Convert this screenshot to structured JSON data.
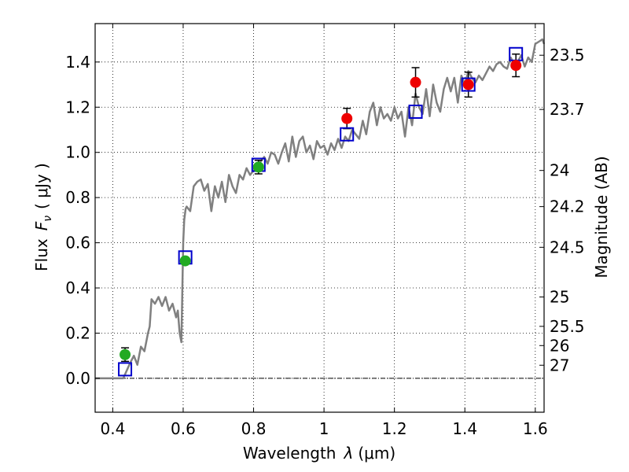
{
  "chart_data": {
    "type": "scatter",
    "xlabel_text": "Wavelength",
    "xlabel_symbol": "λ",
    "xlabel_unit": "(μm)",
    "ylabel_text": "Flux",
    "ylabel_symbol": "F",
    "ylabel_sub": "ν",
    "ylabel_unit": "( μJy )",
    "y2label": "Magnitude (AB)",
    "xlim": [
      0.35,
      1.625
    ],
    "ylim": [
      -0.15,
      1.57
    ],
    "x_ticks": [
      {
        "value": 0.4,
        "label": "0.4"
      },
      {
        "value": 0.6,
        "label": "0.6"
      },
      {
        "value": 0.8,
        "label": "0.8"
      },
      {
        "value": 1.0,
        "label": "1"
      },
      {
        "value": 1.2,
        "label": "1.2"
      },
      {
        "value": 1.4,
        "label": "1.4"
      },
      {
        "value": 1.6,
        "label": "1.6"
      }
    ],
    "y_ticks": [
      {
        "value": 0.0,
        "label": "0.0"
      },
      {
        "value": 0.2,
        "label": "0.2"
      },
      {
        "value": 0.4,
        "label": "0.4"
      },
      {
        "value": 0.6,
        "label": "0.6"
      },
      {
        "value": 0.8,
        "label": "0.8"
      },
      {
        "value": 1.0,
        "label": "1.0"
      },
      {
        "value": 1.2,
        "label": "1.2"
      },
      {
        "value": 1.4,
        "label": "1.4"
      }
    ],
    "mag_ticks": [
      {
        "flux": 1.43,
        "label": "23.5"
      },
      {
        "flux": 1.19,
        "label": "23.7"
      },
      {
        "flux": 0.92,
        "label": "24"
      },
      {
        "flux": 0.76,
        "label": "24.2"
      },
      {
        "flux": 0.58,
        "label": "24.5"
      },
      {
        "flux": 0.36,
        "label": "25"
      },
      {
        "flux": 0.23,
        "label": "25.5"
      },
      {
        "flux": 0.145,
        "label": "26"
      },
      {
        "flux": 0.058,
        "label": "27"
      }
    ],
    "grid": true,
    "zero_line": true,
    "colors": {
      "model": "#808080",
      "green": "#22aa22",
      "red": "#ee0000",
      "box": "#0000cc",
      "grid": "#000000"
    },
    "model_spectrum": {
      "x": [
        0.35,
        0.43,
        0.45,
        0.46,
        0.47,
        0.48,
        0.49,
        0.5,
        0.505,
        0.51,
        0.52,
        0.53,
        0.54,
        0.55,
        0.56,
        0.57,
        0.58,
        0.585,
        0.59,
        0.595,
        0.6,
        0.603,
        0.607,
        0.61,
        0.62,
        0.63,
        0.64,
        0.65,
        0.66,
        0.67,
        0.68,
        0.69,
        0.7,
        0.71,
        0.72,
        0.73,
        0.74,
        0.75,
        0.76,
        0.77,
        0.78,
        0.79,
        0.8,
        0.81,
        0.82,
        0.83,
        0.84,
        0.85,
        0.86,
        0.87,
        0.88,
        0.89,
        0.9,
        0.91,
        0.92,
        0.93,
        0.94,
        0.95,
        0.96,
        0.97,
        0.98,
        0.99,
        1.0,
        1.01,
        1.02,
        1.03,
        1.04,
        1.05,
        1.06,
        1.07,
        1.08,
        1.09,
        1.1,
        1.11,
        1.12,
        1.13,
        1.14,
        1.15,
        1.16,
        1.17,
        1.18,
        1.19,
        1.2,
        1.21,
        1.22,
        1.23,
        1.24,
        1.25,
        1.26,
        1.27,
        1.28,
        1.29,
        1.3,
        1.31,
        1.32,
        1.33,
        1.34,
        1.35,
        1.36,
        1.37,
        1.38,
        1.39,
        1.4,
        1.41,
        1.42,
        1.43,
        1.44,
        1.45,
        1.46,
        1.47,
        1.48,
        1.49,
        1.5,
        1.51,
        1.52,
        1.53,
        1.54,
        1.55,
        1.56,
        1.57,
        1.58,
        1.59,
        1.6,
        1.61,
        1.62,
        1.625
      ],
      "y": [
        0.0,
        0.0,
        0.07,
        0.1,
        0.06,
        0.14,
        0.12,
        0.2,
        0.23,
        0.35,
        0.33,
        0.36,
        0.32,
        0.36,
        0.3,
        0.33,
        0.27,
        0.3,
        0.2,
        0.16,
        0.6,
        0.7,
        0.75,
        0.76,
        0.74,
        0.85,
        0.87,
        0.88,
        0.83,
        0.86,
        0.74,
        0.85,
        0.8,
        0.87,
        0.78,
        0.9,
        0.85,
        0.82,
        0.9,
        0.88,
        0.93,
        0.9,
        0.92,
        0.93,
        0.96,
        0.98,
        0.95,
        1.0,
        0.99,
        0.95,
        1.0,
        1.04,
        0.96,
        1.07,
        0.98,
        1.05,
        1.07,
        1.0,
        1.03,
        0.97,
        1.05,
        1.02,
        1.03,
        0.99,
        1.04,
        1.01,
        1.06,
        1.02,
        1.07,
        1.05,
        1.1,
        1.08,
        1.06,
        1.14,
        1.08,
        1.18,
        1.22,
        1.12,
        1.2,
        1.15,
        1.17,
        1.14,
        1.2,
        1.15,
        1.18,
        1.07,
        1.2,
        1.12,
        1.26,
        1.2,
        1.17,
        1.28,
        1.16,
        1.3,
        1.22,
        1.18,
        1.28,
        1.33,
        1.27,
        1.33,
        1.22,
        1.34,
        1.3,
        1.36,
        1.33,
        1.31,
        1.34,
        1.32,
        1.35,
        1.38,
        1.36,
        1.39,
        1.4,
        1.38,
        1.37,
        1.42,
        1.39,
        1.4,
        1.43,
        1.38,
        1.42,
        1.4,
        1.48,
        1.49,
        1.5,
        1.48
      ]
    },
    "green_points": [
      {
        "x": 0.435,
        "y": 0.105,
        "yerr": 0.03
      },
      {
        "x": 0.606,
        "y": 0.52,
        "yerr": 0.01
      },
      {
        "x": 0.814,
        "y": 0.935,
        "yerr": 0.03
      }
    ],
    "red_points": [
      {
        "x": 1.065,
        "y": 1.15,
        "yerr": 0.045
      },
      {
        "x": 1.26,
        "y": 1.31,
        "yerr": 0.065
      },
      {
        "x": 1.41,
        "y": 1.3,
        "yerr": 0.055
      },
      {
        "x": 1.545,
        "y": 1.385,
        "yerr": 0.05
      }
    ],
    "model_boxes": [
      {
        "x": 0.435,
        "y": 0.04
      },
      {
        "x": 0.606,
        "y": 0.535
      },
      {
        "x": 0.814,
        "y": 0.945
      },
      {
        "x": 1.065,
        "y": 1.08
      },
      {
        "x": 1.26,
        "y": 1.18
      },
      {
        "x": 1.41,
        "y": 1.3
      },
      {
        "x": 1.545,
        "y": 1.435
      }
    ]
  }
}
